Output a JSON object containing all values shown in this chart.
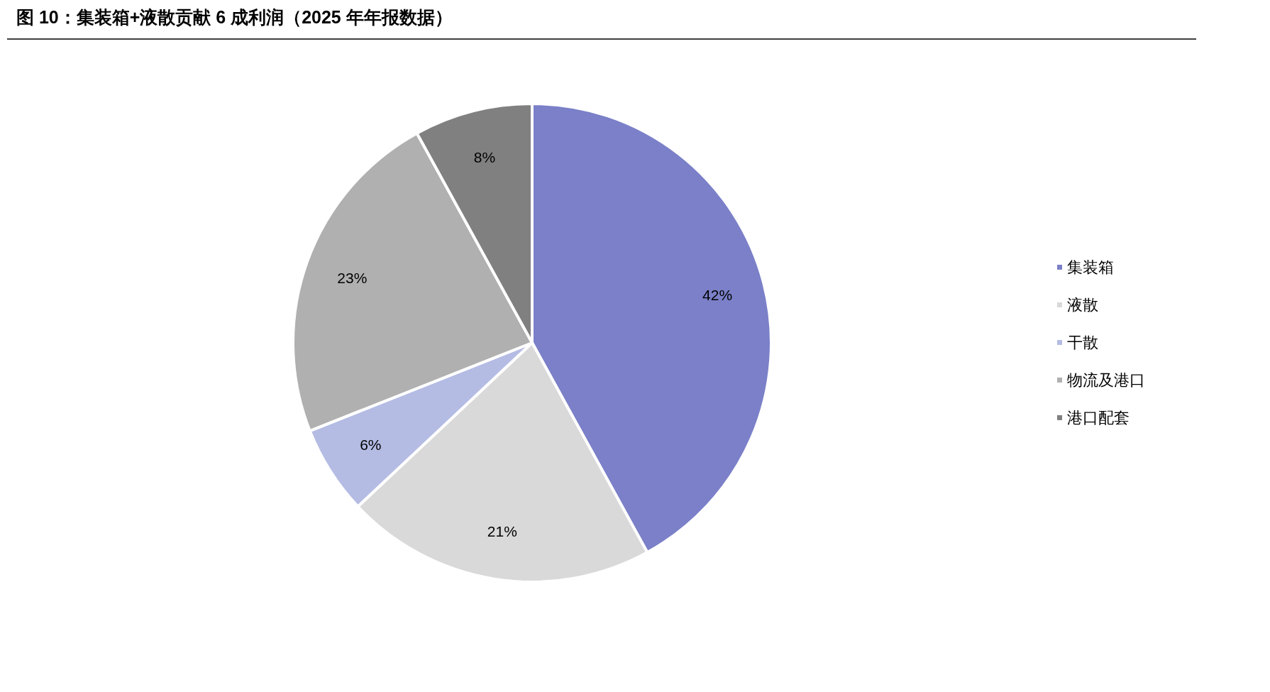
{
  "chart_data": {
    "type": "pie",
    "title": "图 10：集装箱+液散贡献 6 成利润（2025 年年报数据）",
    "categories": [
      "集装箱",
      "液散",
      "干散",
      "物流及港口",
      "港口配套"
    ],
    "values": [
      42,
      21,
      6,
      23,
      8
    ],
    "value_labels": [
      "42%",
      "21%",
      "6%",
      "23%",
      "8%"
    ],
    "colors": [
      "#7b80c8",
      "#d9d9d9",
      "#b4bce4",
      "#b0b0b0",
      "#808080"
    ],
    "legend": "right"
  }
}
